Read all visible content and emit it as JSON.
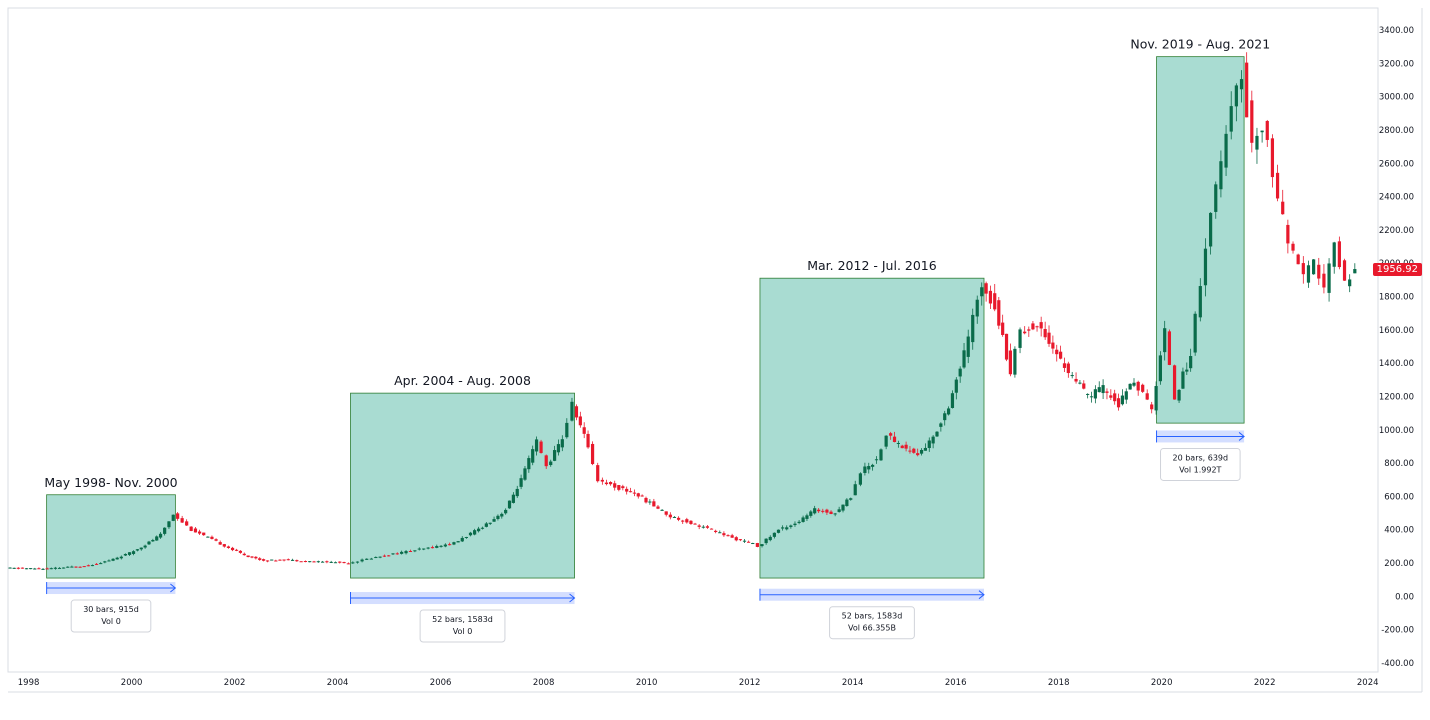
{
  "chart_data": {
    "type": "candlestick",
    "y_axis": {
      "ticks": [
        "3400.00",
        "3200.00",
        "3000.00",
        "2800.00",
        "2600.00",
        "2400.00",
        "2200.00",
        "2000.00",
        "1800.00",
        "1600.00",
        "1400.00",
        "1200.00",
        "1000.00",
        "800.00",
        "600.00",
        "400.00",
        "200.00",
        "0.00",
        "-200.00",
        "-400.00"
      ],
      "min": -400,
      "max": 3400
    },
    "x_axis": {
      "ticks": [
        "1998",
        "2000",
        "2002",
        "2004",
        "2006",
        "2008",
        "2010",
        "2012",
        "2014",
        "2016",
        "2018",
        "2020",
        "2022",
        "2024"
      ],
      "start_year": 1997.6,
      "end_year": 2024.2
    },
    "last_price": "1956.92",
    "colors": {
      "up": "#0a6b4a",
      "down": "#e8192c",
      "zone": "#a9dcd2",
      "zone_border": "#2e7d32",
      "range": "#2962ff"
    },
    "series": [
      {
        "points": [
          [
            1997.6,
            170
          ],
          [
            1998.0,
            168
          ],
          [
            1998.4,
            165
          ],
          [
            1998.8,
            175
          ],
          [
            1999.2,
            185
          ],
          [
            1999.6,
            215
          ],
          [
            2000.0,
            260
          ],
          [
            2000.3,
            310
          ],
          [
            2000.6,
            370
          ],
          [
            2000.85,
            495
          ]
        ]
      },
      {
        "points": [
          [
            2000.85,
            495
          ],
          [
            2001.2,
            400
          ],
          [
            2001.6,
            340
          ],
          [
            2002.0,
            280
          ],
          [
            2002.3,
            240
          ],
          [
            2002.6,
            215
          ],
          [
            2003.0,
            220
          ],
          [
            2003.5,
            210
          ],
          [
            2004.0,
            205
          ],
          [
            2004.25,
            200
          ]
        ]
      },
      {
        "points": [
          [
            2004.25,
            200
          ],
          [
            2004.7,
            230
          ],
          [
            2005.2,
            260
          ],
          [
            2005.8,
            290
          ],
          [
            2006.3,
            320
          ],
          [
            2006.7,
            390
          ],
          [
            2007.0,
            450
          ],
          [
            2007.3,
            520
          ],
          [
            2007.6,
            700
          ],
          [
            2007.9,
            930
          ],
          [
            2008.1,
            780
          ],
          [
            2008.4,
            950
          ],
          [
            2008.6,
            1150
          ]
        ]
      },
      {
        "points": [
          [
            2008.6,
            1150
          ],
          [
            2008.9,
            900
          ],
          [
            2009.1,
            700
          ],
          [
            2009.5,
            650
          ],
          [
            2009.8,
            620
          ],
          [
            2010.1,
            560
          ],
          [
            2010.5,
            480
          ],
          [
            2010.9,
            440
          ],
          [
            2011.3,
            400
          ],
          [
            2011.7,
            350
          ],
          [
            2012.1,
            315
          ],
          [
            2012.2,
            300
          ]
        ]
      },
      {
        "points": [
          [
            2012.2,
            300
          ],
          [
            2012.6,
            400
          ],
          [
            2013.0,
            450
          ],
          [
            2013.3,
            520
          ],
          [
            2013.7,
            500
          ],
          [
            2014.0,
            600
          ],
          [
            2014.2,
            750
          ],
          [
            2014.5,
            820
          ],
          [
            2014.7,
            970
          ],
          [
            2015.0,
            900
          ],
          [
            2015.3,
            850
          ],
          [
            2015.6,
            950
          ],
          [
            2015.9,
            1150
          ],
          [
            2016.2,
            1450
          ],
          [
            2016.55,
            1880
          ]
        ]
      },
      {
        "points": [
          [
            2016.55,
            1880
          ],
          [
            2016.8,
            1750
          ],
          [
            2017.1,
            1350
          ],
          [
            2017.3,
            1600
          ],
          [
            2017.7,
            1620
          ],
          [
            2018.0,
            1450
          ],
          [
            2018.3,
            1320
          ],
          [
            2018.6,
            1200
          ],
          [
            2018.9,
            1250
          ],
          [
            2019.2,
            1150
          ],
          [
            2019.5,
            1300
          ],
          [
            2019.85,
            1120
          ]
        ]
      },
      {
        "points": [
          [
            2019.85,
            1120
          ],
          [
            2020.1,
            1600
          ],
          [
            2020.3,
            1200
          ],
          [
            2020.6,
            1450
          ],
          [
            2020.8,
            1900
          ],
          [
            2021.0,
            2300
          ],
          [
            2021.2,
            2600
          ],
          [
            2021.4,
            2900
          ],
          [
            2021.6,
            3150
          ]
        ]
      },
      {
        "points": [
          [
            2021.6,
            3150
          ],
          [
            2021.8,
            2700
          ],
          [
            2022.0,
            2850
          ],
          [
            2022.2,
            2550
          ],
          [
            2022.4,
            2250
          ],
          [
            2022.6,
            2050
          ],
          [
            2022.8,
            1900
          ],
          [
            2023.0,
            2000
          ],
          [
            2023.2,
            1850
          ],
          [
            2023.4,
            2100
          ],
          [
            2023.6,
            1900
          ],
          [
            2023.8,
            1957
          ]
        ]
      }
    ],
    "highlight_zones": [
      {
        "title": "May 1998- Nov. 2000",
        "x0": 1998.35,
        "x1": 2000.85,
        "y0": 110,
        "y1": 610,
        "range_y": 50,
        "info": [
          "30 bars, 915d",
          "Vol 0"
        ]
      },
      {
        "title": "Apr. 2004 - Aug. 2008",
        "x0": 2004.25,
        "x1": 2008.6,
        "y0": 110,
        "y1": 1220,
        "range_y": -10,
        "info": [
          "52 bars, 1583d",
          "Vol 0"
        ]
      },
      {
        "title": "Mar. 2012 - Jul. 2016",
        "x0": 2012.2,
        "x1": 2016.55,
        "y0": 110,
        "y1": 1910,
        "range_y": 10,
        "info": [
          "52 bars, 1583d",
          "Vol 66.355B"
        ]
      },
      {
        "title": "Nov. 2019 - Aug. 2021",
        "x0": 2019.9,
        "x1": 2021.6,
        "y0": 1040,
        "y1": 3240,
        "range_y": 960,
        "info": [
          "20 bars, 639d",
          "Vol 1.992T"
        ]
      }
    ]
  }
}
